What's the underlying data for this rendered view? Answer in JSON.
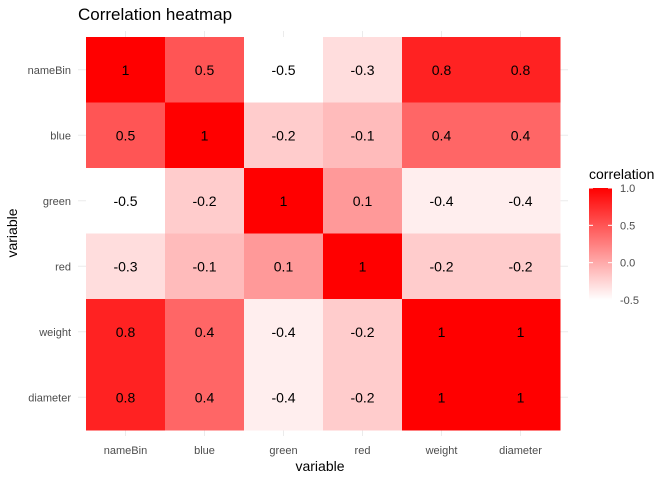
{
  "chart_data": {
    "type": "heatmap",
    "title": "Correlation heatmap",
    "xlabel": "variable",
    "ylabel": "variable",
    "x_categories": [
      "nameBin",
      "blue",
      "green",
      "red",
      "weight",
      "diameter"
    ],
    "y_categories": [
      "nameBin",
      "blue",
      "green",
      "red",
      "weight",
      "diameter"
    ],
    "values": [
      [
        1,
        0.5,
        -0.5,
        -0.3,
        0.8,
        0.8
      ],
      [
        0.5,
        1,
        -0.2,
        -0.1,
        0.4,
        0.4
      ],
      [
        -0.5,
        -0.2,
        1,
        0.1,
        -0.4,
        -0.4
      ],
      [
        -0.3,
        -0.1,
        0.1,
        1,
        -0.2,
        -0.2
      ],
      [
        0.8,
        0.4,
        -0.4,
        -0.2,
        1,
        1
      ],
      [
        0.8,
        0.4,
        -0.4,
        -0.2,
        1,
        1
      ]
    ],
    "cell_labels": [
      [
        "1",
        "0.5",
        "-0.5",
        "-0.3",
        "0.8",
        "0.8"
      ],
      [
        "0.5",
        "1",
        "-0.2",
        "-0.1",
        "0.4",
        "0.4"
      ],
      [
        "-0.5",
        "-0.2",
        "1",
        "0.1",
        "-0.4",
        "-0.4"
      ],
      [
        "-0.3",
        "-0.1",
        "0.1",
        "1",
        "-0.2",
        "-0.2"
      ],
      [
        "0.8",
        "0.4",
        "-0.4",
        "-0.2",
        "1",
        "1"
      ],
      [
        "0.8",
        "0.4",
        "-0.4",
        "-0.2",
        "1",
        "1"
      ]
    ],
    "value_range": [
      -0.5,
      1.0
    ],
    "color_low": "#ffffff",
    "color_high": "#ff0000",
    "legend": {
      "title": "correlation",
      "placement": "right",
      "ticks": [
        1.0,
        0.5,
        0.0,
        -0.5
      ],
      "tick_labels": [
        "1.0",
        "0.5",
        "0.0",
        "-0.5"
      ]
    },
    "grid": true
  }
}
